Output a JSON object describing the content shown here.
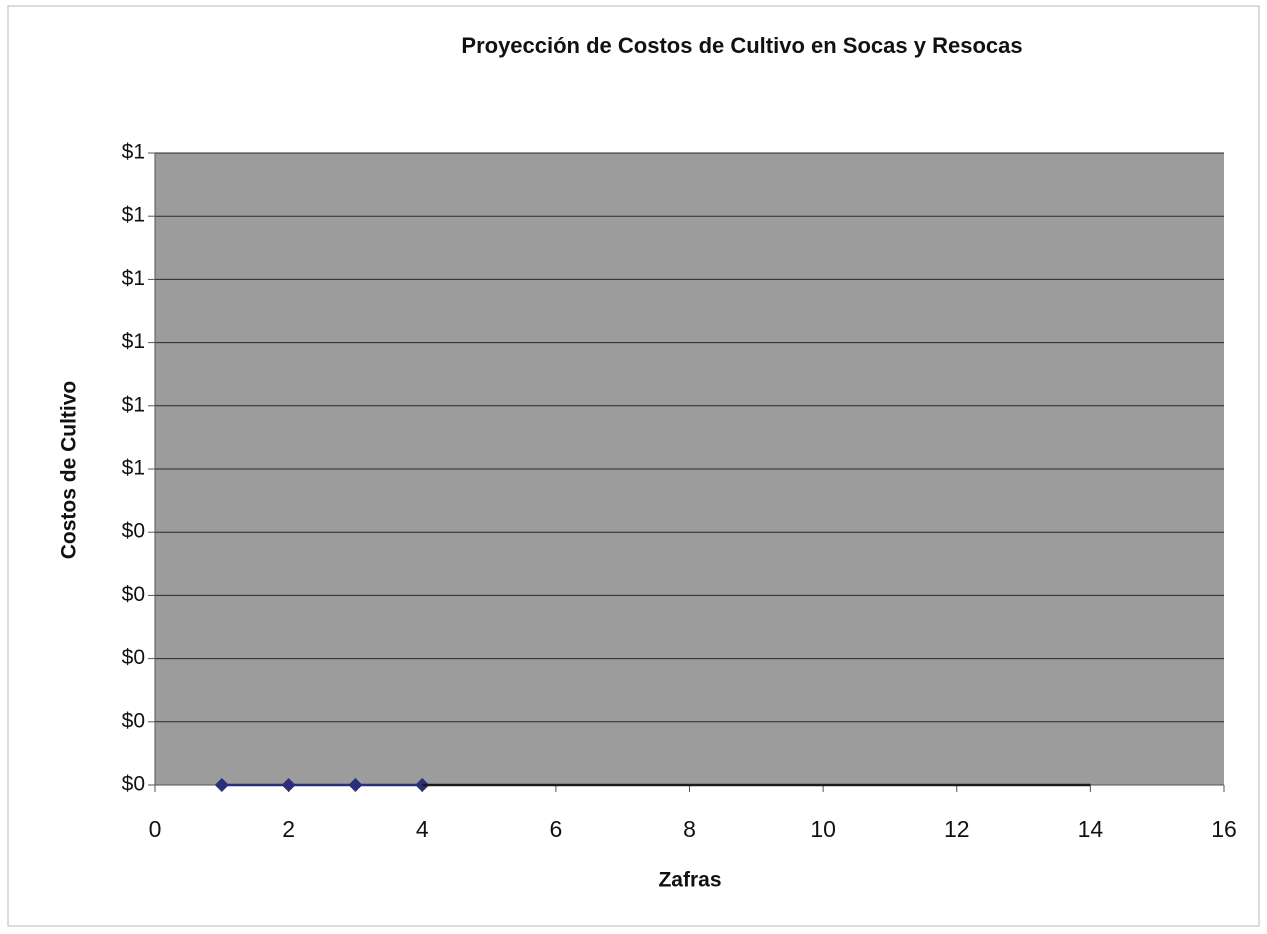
{
  "chart_data": {
    "type": "scatter-line",
    "title": "Proyección de Costos de Cultivo en Socas y Resocas",
    "x_label": "Zafras",
    "y_label": "Costos de Cultivo",
    "xlim": [
      0,
      16
    ],
    "xticks": [
      0,
      2,
      4,
      6,
      8,
      10,
      12,
      14,
      16
    ],
    "ylim": [
      0,
      1
    ],
    "yticks": [
      {
        "value": 0,
        "label": "$0"
      },
      {
        "value": 0.1,
        "label": "$0"
      },
      {
        "value": 0.2,
        "label": "$0"
      },
      {
        "value": 0.3,
        "label": "$0"
      },
      {
        "value": 0.4,
        "label": "$0"
      },
      {
        "value": 0.5,
        "label": "$1"
      },
      {
        "value": 0.6,
        "label": "$1"
      },
      {
        "value": 0.7,
        "label": "$1"
      },
      {
        "value": 0.8,
        "label": "$1"
      },
      {
        "value": 0.9,
        "label": "$1"
      },
      {
        "value": 1,
        "label": "$1"
      }
    ],
    "grid": true,
    "series": [
      {
        "color": "#2b2f7a",
        "x": [
          1,
          2,
          3,
          4
        ],
        "values": [
          0,
          0,
          0,
          0
        ],
        "markers": true,
        "line": true
      },
      {
        "color": "#1a1a1a",
        "x": [
          4,
          14
        ],
        "values": [
          0,
          0
        ],
        "markers": false,
        "line": true
      }
    ]
  }
}
